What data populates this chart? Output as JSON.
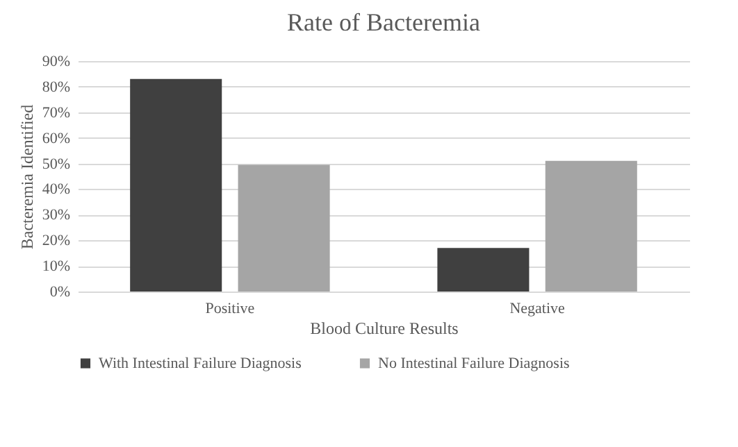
{
  "chart_data": {
    "type": "bar",
    "title": "Rate of Bacteremia",
    "xlabel": "Blood Culture Results",
    "ylabel": "Bacteremia Identified",
    "categories": [
      "Positive",
      "Negative"
    ],
    "series": [
      {
        "name": "With Intestinal Failure Diagnosis",
        "color": "#404040",
        "values": [
          83,
          17
        ]
      },
      {
        "name": "No Intestinal Failure Diagnosis",
        "color": "#a5a5a5",
        "values": [
          49.5,
          51
        ]
      }
    ],
    "ylim": [
      0,
      90
    ],
    "yticks": [
      {
        "value": 0,
        "label": "0%"
      },
      {
        "value": 10,
        "label": "10%"
      },
      {
        "value": 20,
        "label": "20%"
      },
      {
        "value": 30,
        "label": "30%"
      },
      {
        "value": 40,
        "label": "40%"
      },
      {
        "value": 50,
        "label": "50%"
      },
      {
        "value": 60,
        "label": "60%"
      },
      {
        "value": 70,
        "label": "70%"
      },
      {
        "value": 80,
        "label": "80%"
      },
      {
        "value": 90,
        "label": "90%"
      }
    ],
    "grid": "y",
    "legend": "bottom"
  }
}
